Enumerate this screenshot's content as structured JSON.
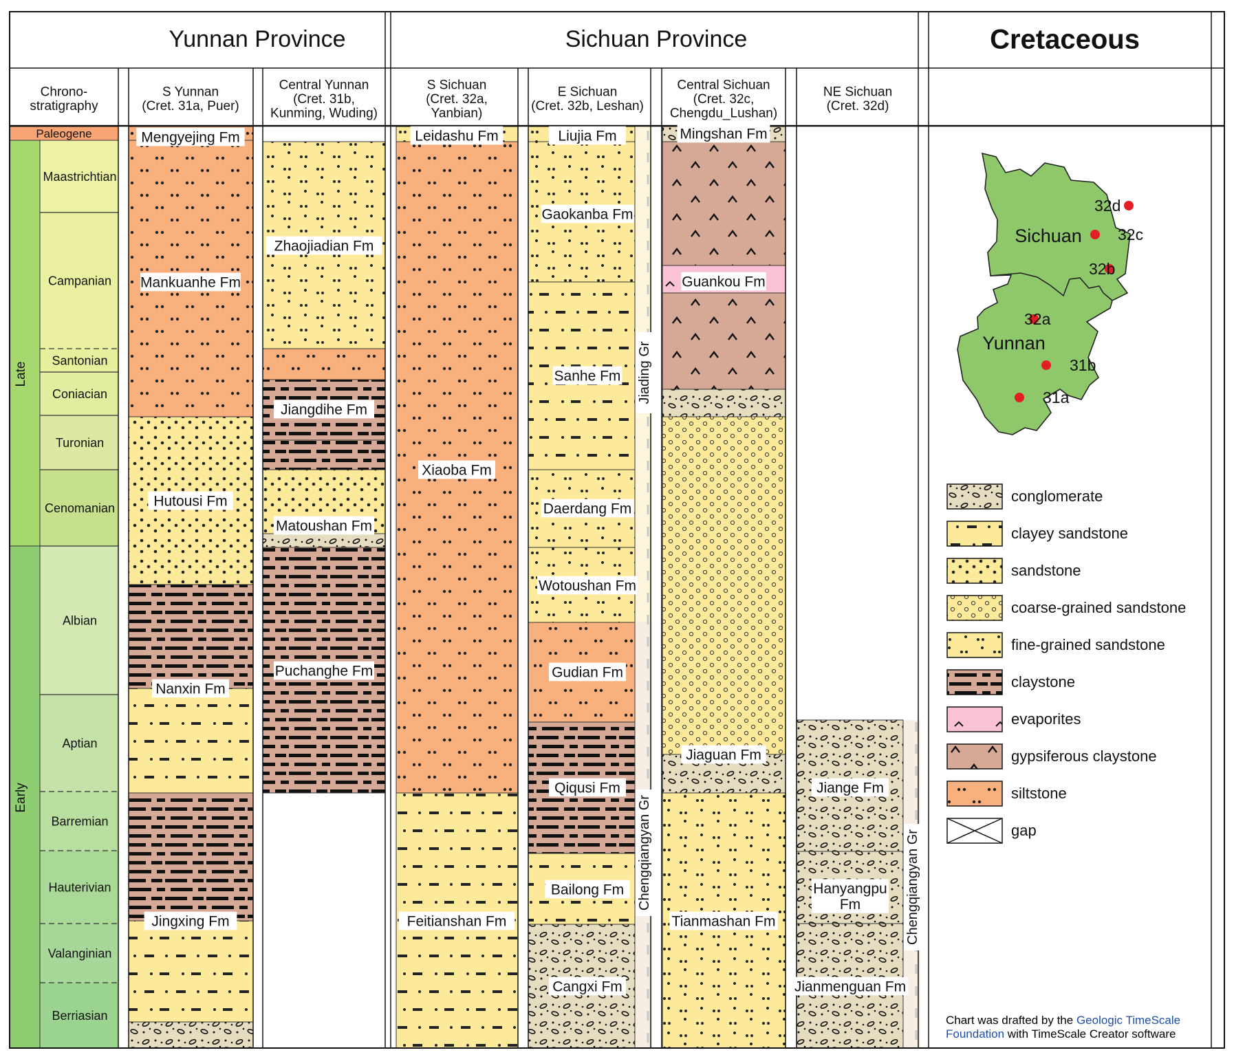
{
  "header": {
    "yunnan_title": "Yunnan Province",
    "sichuan_title": "Sichuan Province",
    "cretaceous_title": "Cretaceous"
  },
  "columns": [
    {
      "id": "chrono",
      "title": "Chrono-\nstratigraphy"
    },
    {
      "id": "sy",
      "title": "S Yunnan\n(Cret. 31a, Puer)"
    },
    {
      "id": "cy",
      "title": "Central Yunnan\n(Cret. 31b,\nKunming, Wuding)"
    },
    {
      "id": "ss",
      "title": "S Sichuan\n(Cret. 32a,\nYanbian)"
    },
    {
      "id": "es",
      "title": "E Sichuan\n(Cret. 32b, Leshan)"
    },
    {
      "id": "cs",
      "title": "Central Sichuan\n(Cret. 32c,\nChengdu_Lushan)"
    },
    {
      "id": "ne",
      "title": "NE Sichuan\n(Cret. 32d)"
    }
  ],
  "chronostratigraphy": {
    "period_label": "Paleogene",
    "epochs": [
      "Late",
      "Early"
    ],
    "stages": [
      "Maastrichtian",
      "Campanian",
      "Santonian",
      "Coniacian",
      "Turonian",
      "Cenomanian",
      "Albian",
      "Aptian",
      "Barremian",
      "Hauterivian",
      "Valanginian",
      "Berriasian"
    ]
  },
  "formations": {
    "sy": [
      "Mengyejing Fm",
      "Mankuanhe Fm",
      "Hutousi Fm",
      "Nanxin Fm",
      "Jingxing Fm"
    ],
    "cy": [
      "Zhaojiadian Fm",
      "Jiangdihe Fm",
      "Matoushan Fm",
      "Puchanghe Fm"
    ],
    "ss": [
      "Leidashu Fm",
      "Xiaoba Fm",
      "Feitianshan Fm"
    ],
    "es": [
      "Liujia Fm",
      "Gaokanba Fm",
      "Sanhe Fm",
      "Daerdang Fm",
      "Wotoushan Fm",
      "Gudian Fm",
      "Qiqusi Fm",
      "Bailong Fm",
      "Cangxi Fm"
    ],
    "cs": [
      "Mingshan Fm",
      "Guankou Fm",
      "Jiaguan Fm",
      "Tianmashan Fm"
    ],
    "ne": [
      "Jiange Fm",
      "Hanyangpu\nFm",
      "Jianmenguan Fm"
    ]
  },
  "groups": [
    "Jiading Gr",
    "Chengqiangyan Gr",
    "Chengqiangyan Gr"
  ],
  "map": {
    "regions": [
      "Sichuan",
      "Yunnan"
    ],
    "sites": [
      "32d",
      "32c",
      "32b",
      "32a",
      "31b",
      "31a"
    ],
    "fill_color": "#8fc86b",
    "site_color": "#e31e24"
  },
  "legend": [
    {
      "pattern": "conglomerate",
      "label": "conglomerate"
    },
    {
      "pattern": "clayey-sandstone",
      "label": "clayey sandstone"
    },
    {
      "pattern": "sandstone",
      "label": "sandstone"
    },
    {
      "pattern": "coarse-sandstone",
      "label": "coarse-grained sandstone"
    },
    {
      "pattern": "fine-sandstone",
      "label": "fine-grained sandstone"
    },
    {
      "pattern": "claystone",
      "label": "claystone"
    },
    {
      "pattern": "evaporites",
      "label": "evaporites"
    },
    {
      "pattern": "gypsiferous-claystone",
      "label": "gypsiferous claystone"
    },
    {
      "pattern": "siltstone",
      "label": "siltstone"
    },
    {
      "pattern": "gap",
      "label": "gap"
    }
  ],
  "credit": {
    "prefix": "Chart was drafted by the ",
    "org_line1": "Geologic TimeScale",
    "org_line2": "Foundation",
    "suffix": " with TimeScale Creator software"
  }
}
